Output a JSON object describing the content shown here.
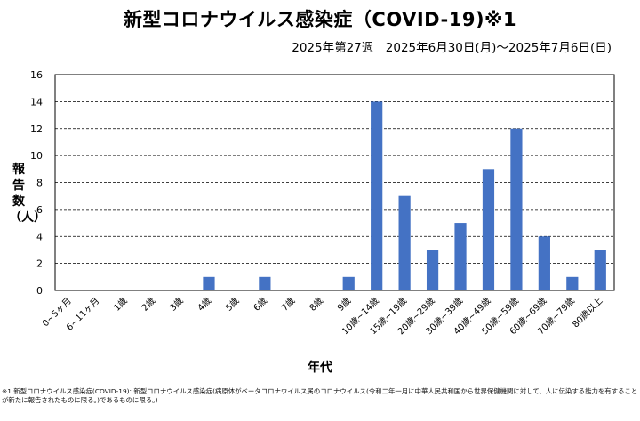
{
  "title": "新型コロナウイルス感染症（COVID-19)※1",
  "subtitle": "2025年第27週　2025年6月30日(月)～2025年7月6日(日)",
  "footnote": "※1 新型コロナウイルス感染症(COVID-19): 新型コロナウイルス感染症(病原体がベータコロナウイルス属のコロナウイルス(令和二年一月に中華人民共和国から世界保健機関に対して、人に伝染する能力を有することが新たに報告されたものに限る。)であるものに限る。)",
  "colors": {
    "bar": "#4472C4",
    "grid": "#000000"
  },
  "chart_data": {
    "type": "bar",
    "categories": [
      "0~5ヶ月",
      "6~11ヶ月",
      "1歳",
      "2歳",
      "3歳",
      "4歳",
      "5歳",
      "6歳",
      "7歳",
      "8歳",
      "9歳",
      "10歳~14歳",
      "15歳~19歳",
      "20歳~29歳",
      "30歳~39歳",
      "40歳~49歳",
      "50歳~59歳",
      "60歳~69歳",
      "70歳~79歳",
      "80歳以上"
    ],
    "values": [
      0,
      0,
      0,
      0,
      0,
      1,
      0,
      1,
      0,
      0,
      1,
      14,
      7,
      3,
      5,
      9,
      12,
      4,
      1,
      3
    ],
    "xlabel": "年代",
    "ylabel": "報告数（人）",
    "ylim": [
      0,
      16
    ],
    "yticks": [
      0,
      2,
      4,
      6,
      8,
      10,
      12,
      14,
      16
    ],
    "grid": "horizontal dashed"
  }
}
